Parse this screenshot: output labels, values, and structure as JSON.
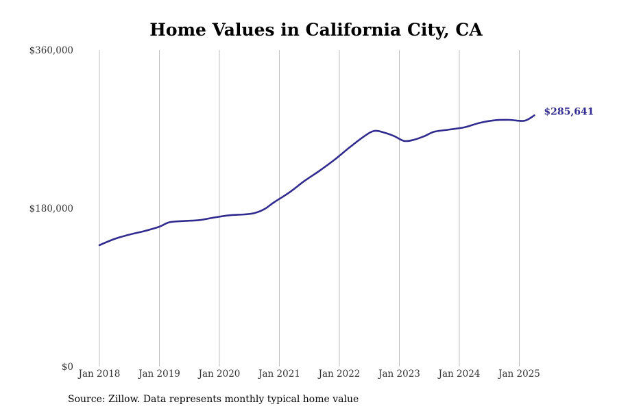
{
  "chart_data": {
    "type": "line",
    "title": "Home Values in California City, CA",
    "xlabel": "",
    "ylabel": "",
    "ylim": [
      0,
      360000
    ],
    "y_ticks": [
      {
        "value": 0,
        "label": "$0"
      },
      {
        "value": 180000,
        "label": "$180,000"
      },
      {
        "value": 360000,
        "label": "$360,000"
      }
    ],
    "x_ticks": [
      {
        "value": "2018-01",
        "label": "Jan 2018"
      },
      {
        "value": "2019-01",
        "label": "Jan 2019"
      },
      {
        "value": "2020-01",
        "label": "Jan 2020"
      },
      {
        "value": "2021-01",
        "label": "Jan 2021"
      },
      {
        "value": "2022-01",
        "label": "Jan 2022"
      },
      {
        "value": "2023-01",
        "label": "Jan 2023"
      },
      {
        "value": "2024-01",
        "label": "Jan 2024"
      },
      {
        "value": "2025-01",
        "label": "Jan 2025"
      }
    ],
    "grid": "vertical",
    "series": [
      {
        "color": "#312a8f",
        "points": [
          {
            "x": "2018-01",
            "y": 138000
          },
          {
            "x": "2018-04",
            "y": 145000
          },
          {
            "x": "2018-07",
            "y": 150000
          },
          {
            "x": "2018-10",
            "y": 154000
          },
          {
            "x": "2019-01",
            "y": 159000
          },
          {
            "x": "2019-03",
            "y": 164000
          },
          {
            "x": "2019-06",
            "y": 165500
          },
          {
            "x": "2019-09",
            "y": 166500
          },
          {
            "x": "2019-12",
            "y": 169500
          },
          {
            "x": "2020-03",
            "y": 172000
          },
          {
            "x": "2020-06",
            "y": 173000
          },
          {
            "x": "2020-08",
            "y": 174500
          },
          {
            "x": "2020-10",
            "y": 179000
          },
          {
            "x": "2020-12",
            "y": 187000
          },
          {
            "x": "2021-03",
            "y": 198000
          },
          {
            "x": "2021-06",
            "y": 211000
          },
          {
            "x": "2021-09",
            "y": 222500
          },
          {
            "x": "2021-12",
            "y": 235000
          },
          {
            "x": "2022-03",
            "y": 249000
          },
          {
            "x": "2022-06",
            "y": 262000
          },
          {
            "x": "2022-08",
            "y": 268000
          },
          {
            "x": "2022-10",
            "y": 266000
          },
          {
            "x": "2022-12",
            "y": 262000
          },
          {
            "x": "2023-02",
            "y": 256500
          },
          {
            "x": "2023-04",
            "y": 258000
          },
          {
            "x": "2023-06",
            "y": 262000
          },
          {
            "x": "2023-08",
            "y": 267000
          },
          {
            "x": "2023-11",
            "y": 269500
          },
          {
            "x": "2024-02",
            "y": 272000
          },
          {
            "x": "2024-05",
            "y": 277000
          },
          {
            "x": "2024-08",
            "y": 280000
          },
          {
            "x": "2024-11",
            "y": 280500
          },
          {
            "x": "2025-02",
            "y": 279500
          },
          {
            "x": "2025-04",
            "y": 285641
          }
        ],
        "end_label": "$285,641"
      }
    ]
  },
  "source_note": "Source: Zillow. Data represents monthly typical home value"
}
